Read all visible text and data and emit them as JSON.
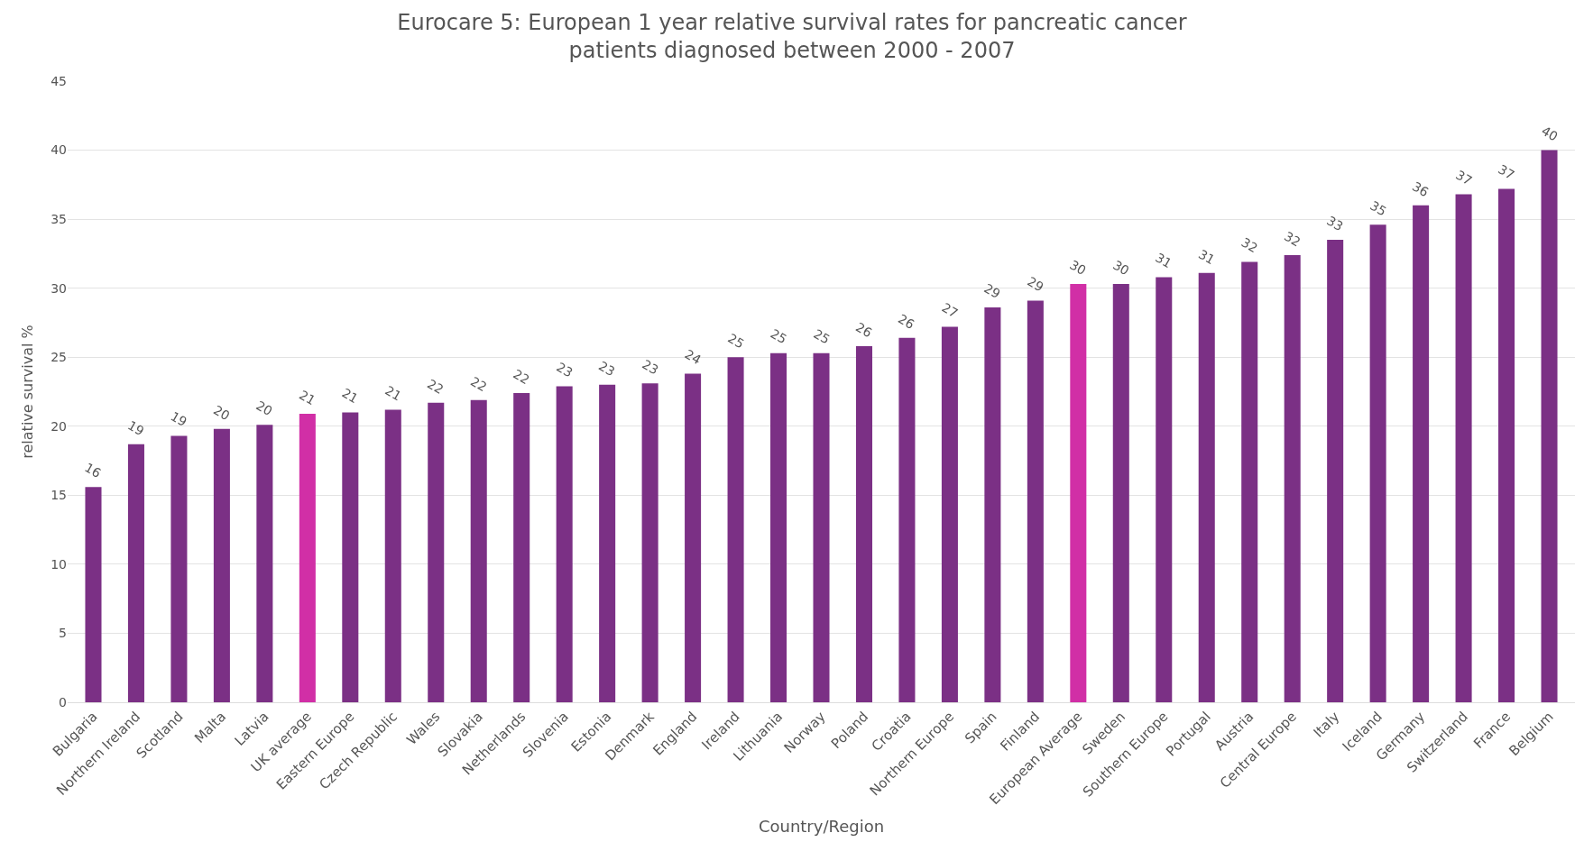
{
  "chart_data": {
    "type": "bar",
    "title": "Eurocare 5: European 1 year relative survival rates for pancreatic cancer\npatients diagnosed between 2000 - 2007",
    "xlabel": "Country/Region",
    "ylabel": "relative survival %",
    "categories": [
      "Bulgaria",
      "Northern Ireland",
      "Scotland",
      "Malta",
      "Latvia",
      "UK average",
      "Eastern Europe",
      "Czech Republic",
      "Wales",
      "Slovakia",
      "Netherlands",
      "Slovenia",
      "Estonia",
      "Denmark",
      "England",
      "Ireland",
      "Lithuania",
      "Norway",
      "Poland",
      "Croatia",
      "Northern Europe",
      "Spain",
      "Finland",
      "European Average",
      "Sweden",
      "Southern Europe",
      "Portugal",
      "Austria",
      "Central Europe",
      "Italy",
      "Iceland",
      "Germany",
      "Switzerland",
      "France",
      "Belgium"
    ],
    "values": [
      15.6,
      18.7,
      19.3,
      19.8,
      20.1,
      20.9,
      21.0,
      21.2,
      21.7,
      21.9,
      22.4,
      22.9,
      23.0,
      23.1,
      23.8,
      25.0,
      25.3,
      25.3,
      25.8,
      26.4,
      27.2,
      28.6,
      29.1,
      30.3,
      30.3,
      30.8,
      31.1,
      31.9,
      32.4,
      33.5,
      34.6,
      36.0,
      36.8,
      37.2,
      40.0
    ],
    "value_labels": [
      "16",
      "19",
      "19",
      "20",
      "20",
      "21",
      "21",
      "21",
      "22",
      "22",
      "22",
      "23",
      "23",
      "23",
      "24",
      "25",
      "25",
      "25",
      "26",
      "26",
      "27",
      "29",
      "29",
      "30",
      "30",
      "31",
      "31",
      "32",
      "32",
      "33",
      "35",
      "36",
      "37",
      "37",
      "40"
    ],
    "colors": [
      "#7b3085",
      "#7b3085",
      "#7b3085",
      "#7b3085",
      "#7b3085",
      "#d12fa6",
      "#7b3085",
      "#7b3085",
      "#7b3085",
      "#7b3085",
      "#7b3085",
      "#7b3085",
      "#7b3085",
      "#7b3085",
      "#7b3085",
      "#7b3085",
      "#7b3085",
      "#7b3085",
      "#7b3085",
      "#7b3085",
      "#7b3085",
      "#7b3085",
      "#7b3085",
      "#d12fa6",
      "#7b3085",
      "#7b3085",
      "#7b3085",
      "#7b3085",
      "#7b3085",
      "#7b3085",
      "#7b3085",
      "#7b3085",
      "#7b3085",
      "#7b3085",
      "#7b3085"
    ],
    "ylim": [
      0,
      45
    ],
    "yticks": [
      0,
      5,
      10,
      15,
      20,
      25,
      30,
      35,
      40,
      45
    ],
    "grid": "y"
  }
}
